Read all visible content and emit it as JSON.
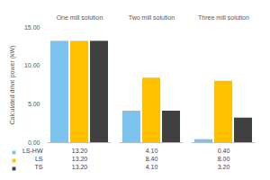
{
  "chart_data": {
    "type": "bar",
    "y_label": "Calculated drive power (kW)",
    "categories": [
      "One mill solution",
      "Two mill solution",
      "Three mill solution"
    ],
    "series": [
      {
        "name": "LS-HW",
        "color": "#7cc3f0",
        "values": [
          13.2,
          4.1,
          0.4
        ],
        "value_labels": [
          "13.20",
          "4.10",
          "0.40"
        ]
      },
      {
        "name": "LS",
        "color": "#ffc000",
        "values": [
          13.2,
          8.4,
          8.0
        ],
        "value_labels": [
          "13.20",
          "8.40",
          "8.00"
        ]
      },
      {
        "name": "TS",
        "color": "#404040",
        "values": [
          13.2,
          4.1,
          3.2
        ],
        "value_labels": [
          "13.20",
          "4.10",
          "3.20"
        ]
      }
    ],
    "ylim": [
      0,
      15
    ],
    "yticks": [
      {
        "value": 0,
        "label": "0.00"
      },
      {
        "value": 5,
        "label": "5.00"
      },
      {
        "value": 10,
        "label": "10.00"
      },
      {
        "value": 15,
        "label": "15.00"
      }
    ],
    "grid": false
  }
}
